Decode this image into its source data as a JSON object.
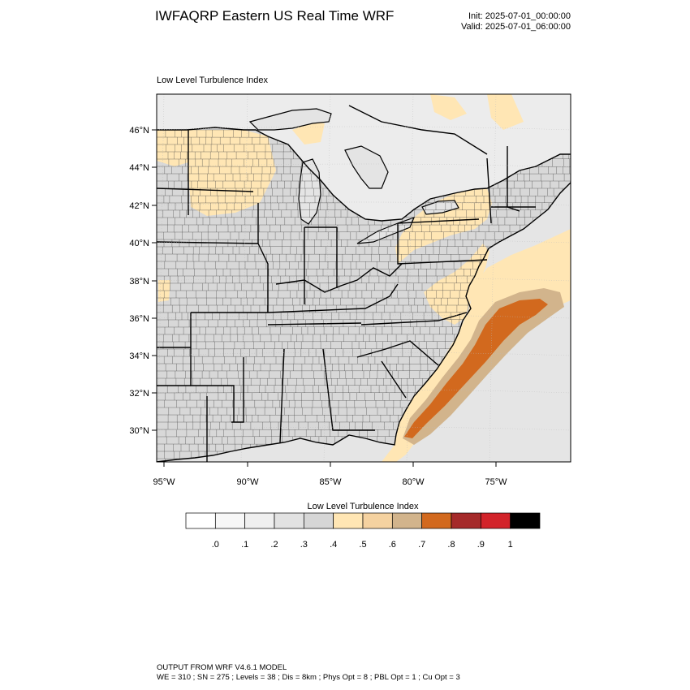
{
  "header": {
    "title": "IWFAQRP Eastern US Real Time WRF",
    "init": "Init: 2025-07-01_00:00:00",
    "valid": "Valid: 2025-07-01_06:00:00"
  },
  "panel": {
    "title": "Low Level Turbulence Index"
  },
  "map": {
    "lat_ticks": [
      "30°N",
      "32°N",
      "34°N",
      "36°N",
      "38°N",
      "40°N",
      "42°N",
      "44°N",
      "46°N"
    ],
    "lon_ticks": [
      "95°W",
      "90°W",
      "85°W",
      "80°W",
      "75°W"
    ],
    "colors": {
      "ocean": "#e5e5e5",
      "canada": "#ececec",
      "land": "#d8d8d8",
      "lake": "#e4e4e4",
      "boundary": "#000000"
    }
  },
  "colorbar": {
    "title": "Low Level Turbulence Index",
    "labels": [
      ".0",
      ".1",
      ".2",
      ".3",
      ".4",
      ".5",
      ".6",
      ".7",
      ".8",
      ".9",
      "1"
    ],
    "colors": [
      "#ffffff",
      "#f7f7f7",
      "#efefef",
      "#e2e2e2",
      "#d6d6d6",
      "#ffe6b4",
      "#f5d2a0",
      "#d2b48c",
      "#d2691e",
      "#a52a2a",
      "#d2232a",
      "#000000"
    ]
  },
  "footer": {
    "line1": "OUTPUT FROM WRF V4.6.1 MODEL",
    "line2": "WE = 310 ; SN = 275 ; Levels = 38 ; Dis = 8km ; Phys Opt = 8 ; PBL Opt = 1 ; Cu Opt = 3"
  }
}
